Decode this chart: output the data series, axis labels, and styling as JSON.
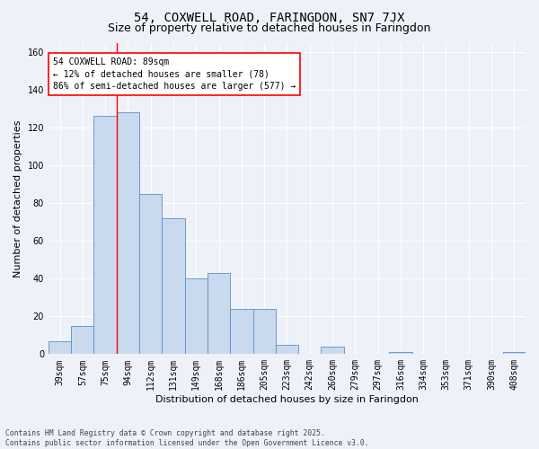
{
  "title1": "54, COXWELL ROAD, FARINGDON, SN7 7JX",
  "title2": "Size of property relative to detached houses in Faringdon",
  "xlabel": "Distribution of detached houses by size in Faringdon",
  "ylabel": "Number of detached properties",
  "categories": [
    "39sqm",
    "57sqm",
    "75sqm",
    "94sqm",
    "112sqm",
    "131sqm",
    "149sqm",
    "168sqm",
    "186sqm",
    "205sqm",
    "223sqm",
    "242sqm",
    "260sqm",
    "279sqm",
    "297sqm",
    "316sqm",
    "334sqm",
    "353sqm",
    "371sqm",
    "390sqm",
    "408sqm"
  ],
  "bar_heights": [
    7,
    15,
    126,
    128,
    85,
    72,
    40,
    43,
    24,
    24,
    5,
    0,
    4,
    0,
    0,
    1,
    0,
    0,
    0,
    0,
    1
  ],
  "bar_color": "#c9d9ee",
  "bar_edge_color": "#5b8fc7",
  "red_line_index": 2.5,
  "annotation_text": "54 COXWELL ROAD: 89sqm\n← 12% of detached houses are smaller (78)\n86% of semi-detached houses are larger (577) →",
  "ylim": [
    0,
    165
  ],
  "yticks": [
    0,
    20,
    40,
    60,
    80,
    100,
    120,
    140,
    160
  ],
  "footer": "Contains HM Land Registry data © Crown copyright and database right 2025.\nContains public sector information licensed under the Open Government Licence v3.0.",
  "bg_color": "#eef1f8",
  "grid_color": "#ffffff",
  "title_fontsize": 10,
  "subtitle_fontsize": 9,
  "axis_label_fontsize": 8,
  "tick_fontsize": 7
}
